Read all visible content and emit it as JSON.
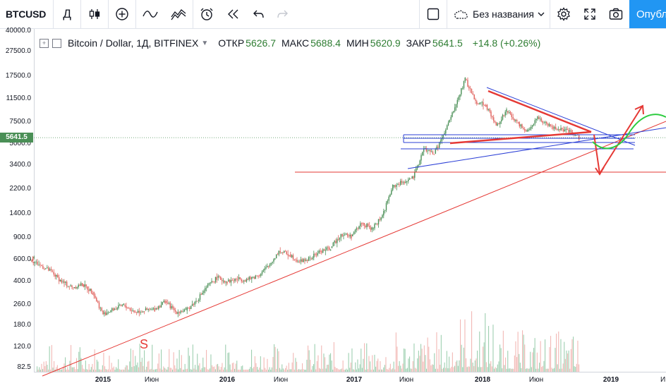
{
  "toolbar": {
    "symbol": "BTCUSD",
    "interval": "Д",
    "layout_name": "Без названия",
    "publish_label": "Опубл"
  },
  "legend": {
    "title": "Bitcoin / Dollar, 1Д, BITFINEX",
    "open_label": "ОТКР",
    "open": "5626.7",
    "high_label": "МАКС",
    "high": "5688.4",
    "low_label": "МИН",
    "low": "5620.9",
    "close_label": "ЗАКР",
    "close": "5641.5",
    "change": "+14.8 (+0.26%)"
  },
  "current_price": "5641.5",
  "colors": {
    "up": "#4a8f56",
    "down": "#e0615c",
    "accent": "#2196f3",
    "volume_up": "#9ecfb0",
    "volume_down": "#f2b8b5"
  },
  "chart_data": {
    "type": "candlestick",
    "y_scale": "log",
    "price_ticks": [
      "40000.0",
      "27500.0",
      "17500.0",
      "11500.0",
      "7500.0",
      "5000.0",
      "3400.0",
      "2200.0",
      "1400.0",
      "900.0",
      "600.0",
      "400.0",
      "260.0",
      "180.0",
      "120.0",
      "82.5"
    ],
    "time_ticks": [
      "2015",
      "Июн",
      "2016",
      "Июн",
      "2017",
      "Июн",
      "2018",
      "Июн",
      "2019",
      "Июл"
    ],
    "bold_ticks": [
      "2015",
      "2016",
      "2017",
      "2018",
      "2019"
    ],
    "annotation_text": "S",
    "price_path": [
      [
        "2014-04",
        620
      ],
      [
        "2014-06",
        600
      ],
      [
        "2014-08",
        480
      ],
      [
        "2014-09",
        400
      ],
      [
        "2014-10",
        360
      ],
      [
        "2014-11",
        380
      ],
      [
        "2014-12",
        330
      ],
      [
        "2015-01",
        220
      ],
      [
        "2015-02",
        240
      ],
      [
        "2015-03",
        260
      ],
      [
        "2015-04",
        230
      ],
      [
        "2015-05",
        235
      ],
      [
        "2015-06",
        240
      ],
      [
        "2015-07",
        280
      ],
      [
        "2015-08",
        230
      ],
      [
        "2015-09",
        235
      ],
      [
        "2015-10",
        280
      ],
      [
        "2015-11",
        360
      ],
      [
        "2015-12",
        430
      ],
      [
        "2016-01",
        400
      ],
      [
        "2016-02",
        420
      ],
      [
        "2016-03",
        415
      ],
      [
        "2016-04",
        450
      ],
      [
        "2016-05",
        530
      ],
      [
        "2016-06",
        700
      ],
      [
        "2016-07",
        660
      ],
      [
        "2016-08",
        580
      ],
      [
        "2016-09",
        610
      ],
      [
        "2016-10",
        700
      ],
      [
        "2016-11",
        740
      ],
      [
        "2016-12",
        960
      ],
      [
        "2017-01",
        920
      ],
      [
        "2017-02",
        1180
      ],
      [
        "2017-03",
        1050
      ],
      [
        "2017-04",
        1350
      ],
      [
        "2017-05",
        2300
      ],
      [
        "2017-06",
        2500
      ],
      [
        "2017-07",
        2700
      ],
      [
        "2017-08",
        4600
      ],
      [
        "2017-09",
        4200
      ],
      [
        "2017-10",
        6100
      ],
      [
        "2017-11",
        9800
      ],
      [
        "2017-12",
        16500
      ],
      [
        "2018-01",
        11000
      ],
      [
        "2018-02",
        10300
      ],
      [
        "2018-03",
        7000
      ],
      [
        "2018-04",
        9200
      ],
      [
        "2018-05",
        7500
      ],
      [
        "2018-06",
        6400
      ],
      [
        "2018-07",
        8200
      ],
      [
        "2018-08",
        7000
      ],
      [
        "2018-09",
        6600
      ],
      [
        "2018-10",
        6300
      ],
      [
        "2018-11",
        5641.5
      ]
    ]
  }
}
